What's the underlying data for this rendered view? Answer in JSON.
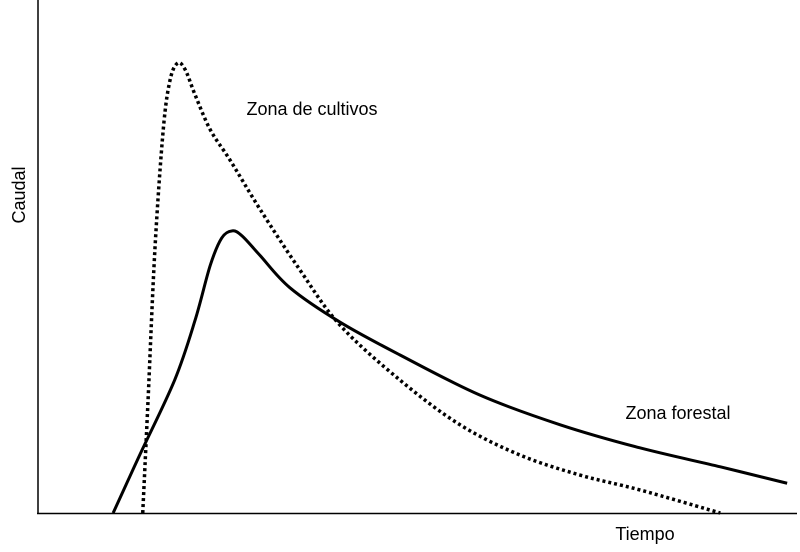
{
  "chart_data": {
    "type": "line",
    "x_label": "Tiempo",
    "y_label": "Caudal",
    "xlim": [
      0,
      100
    ],
    "ylim": [
      0,
      100
    ],
    "series": [
      {
        "name": "Zona de cultivos",
        "color": "#000000",
        "dash": "dotted",
        "x": [
          13.8,
          14.5,
          15.4,
          16.5,
          17.4,
          18.4,
          19.4,
          20.7,
          22.7,
          25.3,
          29.3,
          34.5,
          39.8,
          47.7,
          55.6,
          63.5,
          71.4,
          79.3,
          89.9
        ],
        "values": [
          0,
          22.0,
          51.3,
          74.7,
          84.4,
          87.7,
          86.4,
          81.5,
          74.7,
          68.8,
          59.1,
          47.4,
          36.6,
          25.9,
          17.2,
          11.3,
          7.4,
          4.5,
          0
        ]
      },
      {
        "name": "Zona forestal",
        "color": "#000000",
        "dash": "solid",
        "x": [
          9.9,
          13.4,
          18.0,
          20.7,
          22.7,
          24.2,
          25.6,
          26.9,
          29.2,
          33.2,
          39.8,
          47.7,
          58.2,
          68.8,
          79.3,
          89.9,
          98.7
        ],
        "values": [
          0,
          11.3,
          25.9,
          37.6,
          48.3,
          53.6,
          55.0,
          54.0,
          50.3,
          43.9,
          37.2,
          30.8,
          23.0,
          17.2,
          12.7,
          9.0,
          5.8
        ]
      }
    ]
  }
}
